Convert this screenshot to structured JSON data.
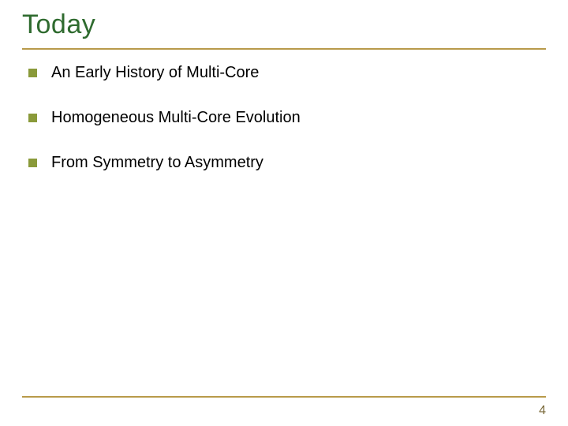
{
  "title": {
    "text": "Today",
    "color": "#2f6b2f",
    "fontsize": 34
  },
  "rule_color": "#b89a4a",
  "bullets": {
    "marker_color": "#8a9a3a",
    "text_color": "#000000",
    "fontsize": 20,
    "items": [
      {
        "text": "An Early History of Multi-Core"
      },
      {
        "text": "Homogeneous Multi-Core Evolution"
      },
      {
        "text": "From Symmetry to Asymmetry"
      }
    ]
  },
  "page_number": {
    "text": "4",
    "color": "#7a6a3a",
    "fontsize": 16
  },
  "background_color": "#ffffff"
}
